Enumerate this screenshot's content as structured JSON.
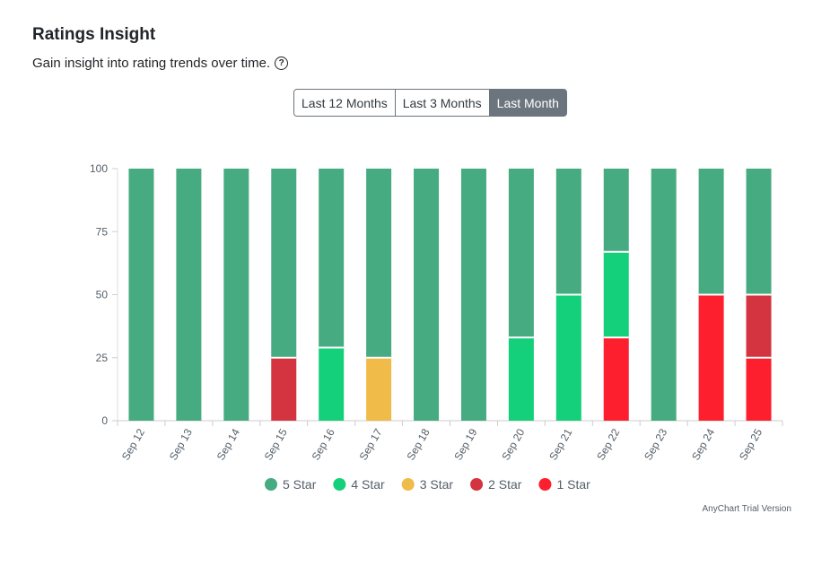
{
  "header": {
    "title": "Ratings Insight",
    "subtitle": "Gain insight into rating trends over time."
  },
  "range_buttons": {
    "labels": [
      "Last 12 Months",
      "Last 3 Months",
      "Last Month"
    ],
    "active": 2
  },
  "chart_data": {
    "type": "stacked_bar",
    "categories": [
      "Sep 12",
      "Sep 13",
      "Sep 14",
      "Sep 15",
      "Sep 16",
      "Sep 17",
      "Sep 18",
      "Sep 19",
      "Sep 20",
      "Sep 21",
      "Sep 22",
      "Sep 23",
      "Sep 24",
      "Sep 25"
    ],
    "series": [
      {
        "name": "1 Star",
        "color": "#fd1e2e",
        "values": [
          0,
          0,
          0,
          0,
          0,
          0,
          0,
          0,
          0,
          0,
          33,
          0,
          50,
          25
        ]
      },
      {
        "name": "2 Star",
        "color": "#d3343f",
        "values": [
          0,
          0,
          0,
          25,
          0,
          0,
          0,
          0,
          0,
          0,
          0,
          0,
          0,
          25
        ]
      },
      {
        "name": "3 Star",
        "color": "#f0bb48",
        "values": [
          0,
          0,
          0,
          0,
          0,
          25,
          0,
          0,
          0,
          0,
          0,
          0,
          0,
          0
        ]
      },
      {
        "name": "4 Star",
        "color": "#14d07a",
        "values": [
          0,
          0,
          0,
          0,
          29,
          0,
          0,
          0,
          33,
          50,
          34,
          0,
          0,
          0
        ]
      },
      {
        "name": "5 Star",
        "color": "#46ab80",
        "values": [
          100,
          100,
          100,
          75,
          71,
          75,
          100,
          100,
          67,
          50,
          33,
          100,
          50,
          50
        ]
      }
    ],
    "ylim": [
      0,
      100
    ],
    "yticks": [
      0,
      25,
      50,
      75,
      100
    ],
    "legend_position": "bottom",
    "credits": "AnyChart Trial Version"
  }
}
